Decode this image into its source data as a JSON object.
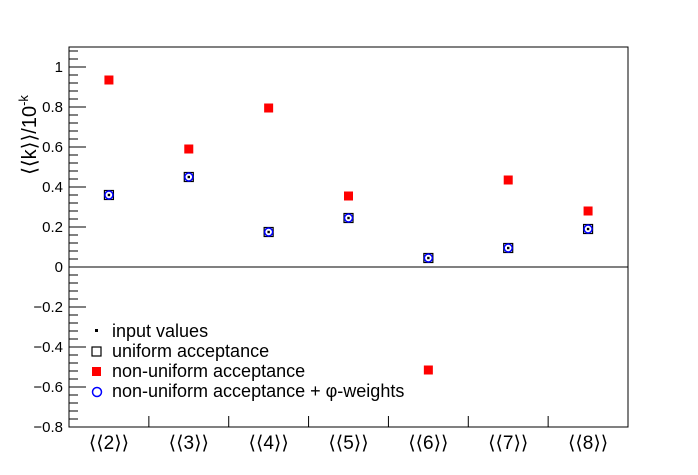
{
  "chart_data": {
    "type": "scatter",
    "ylabel": "⟨⟨k⟩⟩/10",
    "ylabel_exponent": "-k",
    "ylim": [
      -0.8,
      1.1
    ],
    "yticks": [
      "−0.8",
      "−0.6",
      "−0.4",
      "−0.2",
      "0",
      "0.2",
      "0.4",
      "0.6",
      "0.8",
      "1"
    ],
    "ytick_values": [
      -0.8,
      -0.6,
      -0.4,
      -0.2,
      0,
      0.2,
      0.4,
      0.6,
      0.8,
      1.0
    ],
    "categories": [
      "⟨⟨2⟩⟩",
      "⟨⟨3⟩⟩",
      "⟨⟨4⟩⟩",
      "⟨⟨5⟩⟩",
      "⟨⟨6⟩⟩",
      "⟨⟨7⟩⟩",
      "⟨⟨8⟩⟩"
    ],
    "series": [
      {
        "name": "input values",
        "marker": "dot",
        "color": "#000000",
        "values": [
          0.36,
          0.45,
          0.175,
          0.245,
          0.045,
          0.095,
          0.19
        ]
      },
      {
        "name": "uniform acceptance",
        "marker": "open-square",
        "color": "#000000",
        "values": [
          0.36,
          0.45,
          0.175,
          0.245,
          0.045,
          0.095,
          0.19
        ]
      },
      {
        "name": "non-uniform acceptance",
        "marker": "filled-square",
        "color": "#ff0000",
        "values": [
          0.935,
          0.59,
          0.795,
          0.355,
          -0.515,
          0.435,
          0.28
        ]
      },
      {
        "name": "non-uniform acceptance + φ-weights",
        "marker": "open-circle",
        "color": "#0000ff",
        "values": [
          0.36,
          0.45,
          0.175,
          0.245,
          0.045,
          0.095,
          0.19
        ]
      }
    ],
    "legend_position": "bottom-left",
    "zero_line": true
  }
}
